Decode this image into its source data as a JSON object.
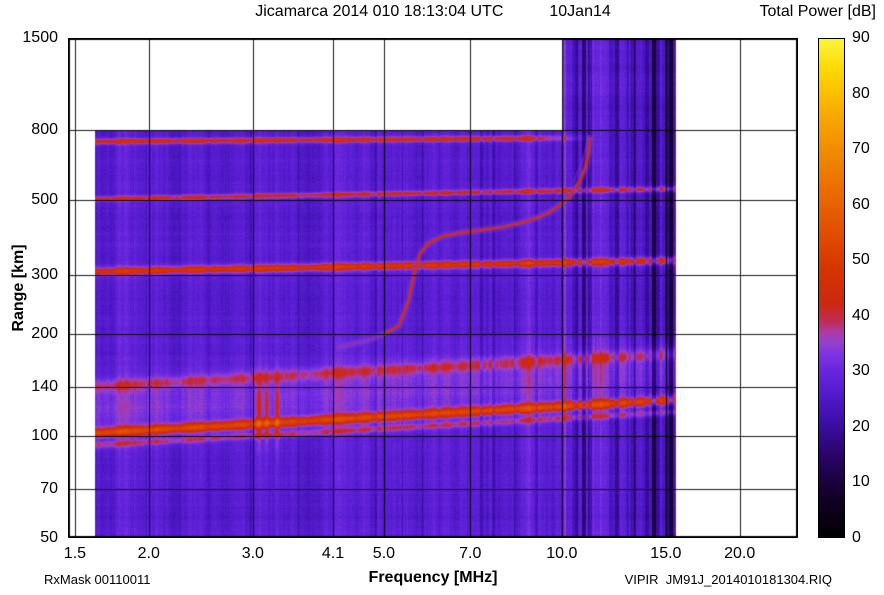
{
  "header": {
    "title": "Jicamarca 2014 010 18:13:04 UTC",
    "date": "10Jan14",
    "colorbar_title": "Total Power [dB]"
  },
  "footer": {
    "rxmask": "RxMask 00110011",
    "xlabel": "Frequency [MHz]",
    "filename": "VIPIR  JM91J_2014010181304.RIQ"
  },
  "chart_data": {
    "type": "heatmap",
    "title": "Jicamarca 2014 010 18:13:04 UTC",
    "subtitle": "10Jan14",
    "xlabel": "Frequency [MHz]",
    "ylabel": "Range [km]",
    "x_scale": "log",
    "y_scale": "log",
    "x_domain": [
      1.46,
      25.1
    ],
    "y_domain": [
      50,
      1500
    ],
    "x_ticks": [
      1.5,
      2.0,
      3.0,
      4.1,
      5.0,
      7.0,
      10.0,
      15.0,
      20.0
    ],
    "x_tick_labels": [
      "1.5",
      "2.0",
      "3.0",
      "4.1",
      "5.0",
      "7.0",
      "10.0",
      "15.0",
      "20.0"
    ],
    "y_ticks": [
      50,
      70,
      100,
      140,
      200,
      300,
      500,
      800,
      1500
    ],
    "grid": true,
    "background_db": 27,
    "data_extent": {
      "f_min": 1.62,
      "f_max": 15.6,
      "r_min": 50,
      "r_max": 800,
      "rfi_full_height_from_mhz": 10.05
    },
    "colorbar": {
      "label": "Total Power [dB]",
      "min": 0,
      "max": 90,
      "ticks": [
        0,
        10,
        20,
        30,
        40,
        50,
        60,
        70,
        80,
        90
      ],
      "stops": [
        [
          0,
          "#000000"
        ],
        [
          7,
          "#120026"
        ],
        [
          14,
          "#270460"
        ],
        [
          20,
          "#3a0da0"
        ],
        [
          24,
          "#4a16c0"
        ],
        [
          27,
          "#5a1ed2"
        ],
        [
          30,
          "#6826de"
        ],
        [
          33,
          "#7c34e0"
        ],
        [
          35,
          "#9240d0"
        ],
        [
          37,
          "#ac3aa8"
        ],
        [
          39,
          "#c02c58"
        ],
        [
          42,
          "#cc2810"
        ],
        [
          48,
          "#d53300"
        ],
        [
          55,
          "#e04e00"
        ],
        [
          62,
          "#ea6a00"
        ],
        [
          70,
          "#f28c00"
        ],
        [
          78,
          "#f9b200"
        ],
        [
          84,
          "#fdd500"
        ],
        [
          90,
          "#fdf53a"
        ]
      ]
    },
    "bands": [
      {
        "name": "echo-745km",
        "center_km": 742,
        "slope_alpha": 0.012,
        "sigma_log": 0.006,
        "amp_db": 19,
        "f_start": 1.62,
        "f_end": 11.5,
        "fade_after": 8.5
      },
      {
        "name": "echo-505km",
        "center_km": 502,
        "slope_alpha": 0.03,
        "sigma_log": 0.0055,
        "amp_db": 17,
        "f_start": 1.62,
        "f_end": 15.6
      },
      {
        "name": "echo-310km",
        "center_km": 306,
        "slope_alpha": 0.034,
        "sigma_log": 0.008,
        "amp_db": 21,
        "f_start": 1.62,
        "f_end": 15.6
      },
      {
        "name": "e-region-haze",
        "center_km": 122,
        "slope_alpha": 0.1,
        "sigma_log": 0.062,
        "amp_db": 7,
        "f_start": 1.62,
        "f_end": 15.6
      },
      {
        "name": "band-140km",
        "center_km": 140,
        "slope_alpha": 0.1,
        "sigma_log": 0.013,
        "amp_db": 9,
        "f_start": 1.62,
        "f_end": 15.6
      },
      {
        "name": "band-103km",
        "center_km": 102,
        "slope_alpha": 0.1,
        "sigma_log": 0.01,
        "amp_db": 23,
        "f_start": 1.62,
        "f_end": 15.6
      },
      {
        "name": "band-95km",
        "center_km": 94,
        "slope_alpha": 0.1,
        "sigma_log": 0.007,
        "amp_db": 11,
        "f_start": 1.62,
        "f_end": 15.6
      }
    ],
    "trace_points": [
      [
        4.2,
        183
      ],
      [
        4.7,
        192
      ],
      [
        5.0,
        200
      ],
      [
        5.3,
        212
      ],
      [
        5.5,
        250
      ],
      [
        5.62,
        300
      ],
      [
        5.75,
        345
      ],
      [
        5.95,
        372
      ],
      [
        6.3,
        390
      ],
      [
        6.8,
        400
      ],
      [
        7.3,
        406
      ],
      [
        7.9,
        414
      ],
      [
        8.5,
        426
      ],
      [
        9.1,
        442
      ],
      [
        9.6,
        462
      ],
      [
        10.0,
        486
      ],
      [
        10.35,
        515
      ],
      [
        10.7,
        562
      ],
      [
        10.95,
        618
      ],
      [
        11.1,
        685
      ],
      [
        11.17,
        755
      ]
    ],
    "trace_upper_points": [
      [
        10.45,
        565
      ],
      [
        10.75,
        625
      ],
      [
        10.95,
        690
      ],
      [
        11.1,
        770
      ]
    ],
    "rfi": {
      "dark_streak_zone": [
        10.2,
        15.6
      ],
      "pink_line_mhz": 10.12,
      "red_spot_freqs": [
        3.07,
        3.17,
        3.3
      ],
      "dark_freqs": [
        7.3,
        7.65,
        9.05,
        15.25,
        15.4
      ]
    }
  }
}
